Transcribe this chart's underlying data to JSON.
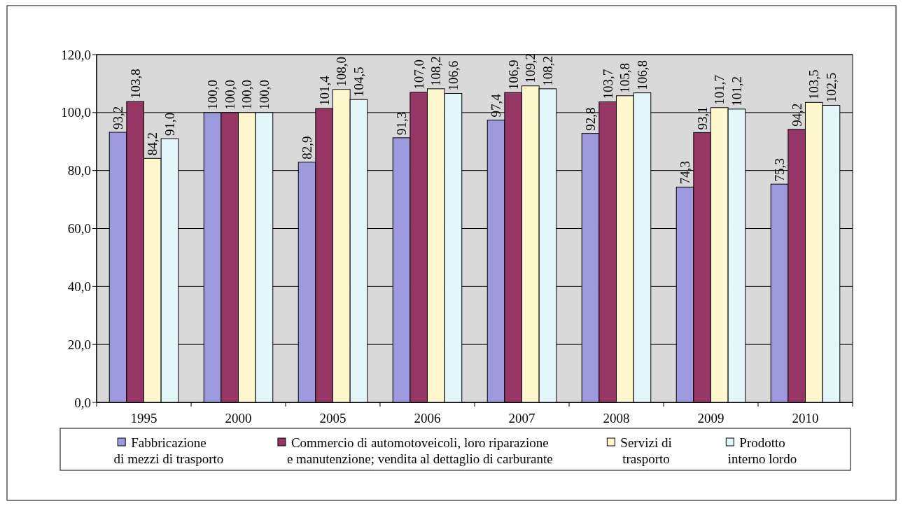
{
  "chart_data": {
    "type": "bar",
    "categories": [
      "1995",
      "2000",
      "2005",
      "2006",
      "2007",
      "2008",
      "2009",
      "2010"
    ],
    "series": [
      {
        "name": "Fabbricazione di mezzi di trasporto",
        "color": "#9d99dd",
        "values": [
          93.2,
          100.0,
          82.9,
          91.3,
          97.4,
          92.8,
          74.3,
          75.3
        ],
        "value_labels": [
          "93,2",
          "100,0",
          "82,9",
          "91,3",
          "97,4",
          "92,8",
          "74,3",
          "75,3"
        ]
      },
      {
        "name": "Commercio di automotoveicoli, loro riparazione e manutenzione; vendita al dettaglio di carburante",
        "color": "#963665",
        "values": [
          103.8,
          100.0,
          101.4,
          107.0,
          106.9,
          103.7,
          93.1,
          94.2
        ],
        "value_labels": [
          "103,8",
          "100,0",
          "101,4",
          "107,0",
          "106,9",
          "103,7",
          "93,1",
          "94,2"
        ]
      },
      {
        "name": "Servizi di trasporto",
        "color": "#fff8cf",
        "values": [
          84.2,
          100.0,
          108.0,
          108.2,
          109.2,
          105.8,
          101.7,
          103.5
        ],
        "value_labels": [
          "84,2",
          "100,0",
          "108,0",
          "108,2",
          "109,2",
          "105,8",
          "101,7",
          "103,5"
        ]
      },
      {
        "name": "Prodotto interno lordo",
        "color": "#e3f6f9",
        "values": [
          91.0,
          100.0,
          104.5,
          106.6,
          108.2,
          106.8,
          101.2,
          102.5
        ],
        "value_labels": [
          "91,0",
          "100,0",
          "104,5",
          "106,6",
          "108,2",
          "106,8",
          "101,2",
          "102,5"
        ]
      }
    ],
    "ylim": [
      0,
      120
    ],
    "yticks": [
      {
        "value": 0,
        "label": "0,0"
      },
      {
        "value": 20,
        "label": "20,0"
      },
      {
        "value": 40,
        "label": "40,0"
      },
      {
        "value": 60,
        "label": "60,0"
      },
      {
        "value": 80,
        "label": "80,0"
      },
      {
        "value": 100,
        "label": "100,0"
      },
      {
        "value": 120,
        "label": "120,0"
      }
    ],
    "grid": "y",
    "legend": "bottom"
  }
}
